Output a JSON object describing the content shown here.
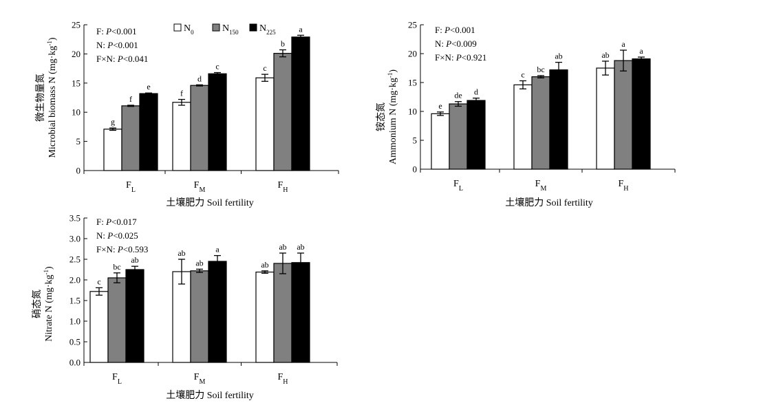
{
  "legend": [
    {
      "label": "N",
      "sub": "0",
      "color": "#ffffff"
    },
    {
      "label": "N",
      "sub": "150",
      "color": "#808080"
    },
    {
      "label": "N",
      "sub": "225",
      "color": "#000000"
    }
  ],
  "chart_data": [
    {
      "type": "bar",
      "ylabel_cn": "微生物量氮",
      "ylabel_en": "Microbial biomass N (mg·kg",
      "ylabel_sup": "-1",
      "ylabel_tail": ")",
      "xlabel": "土壤肥力 Soil fertility",
      "categories": [
        {
          "main": "F",
          "sub": "L"
        },
        {
          "main": "F",
          "sub": "M"
        },
        {
          "main": "F",
          "sub": "H"
        }
      ],
      "ylim": [
        0,
        25
      ],
      "yticks": [
        "0",
        "5",
        "10",
        "15",
        "20",
        "25"
      ],
      "stats": [
        {
          "pre": "F: ",
          "p": "P",
          "post": "<0.001"
        },
        {
          "pre": "N: ",
          "p": "P",
          "post": "<0.001"
        },
        {
          "pre": "F×N: ",
          "p": "P",
          "post": "<0.041"
        }
      ],
      "series": [
        {
          "name": "N0",
          "values": [
            7.1,
            11.7,
            15.9
          ],
          "errors": [
            0.2,
            0.5,
            0.6
          ],
          "letters": [
            "g",
            "f",
            "c"
          ]
        },
        {
          "name": "N150",
          "values": [
            11.1,
            14.6,
            20.1
          ],
          "errors": [
            0.1,
            0.1,
            0.6
          ],
          "letters": [
            "f",
            "d",
            "b"
          ]
        },
        {
          "name": "N225",
          "values": [
            13.2,
            16.6,
            22.9
          ],
          "errors": [
            0.1,
            0.2,
            0.3
          ],
          "letters": [
            "e",
            "c",
            "a"
          ]
        }
      ]
    },
    {
      "type": "bar",
      "ylabel_cn": "铵态氮",
      "ylabel_en": "Ammonium N (mg·kg",
      "ylabel_sup": "-1",
      "ylabel_tail": ")",
      "xlabel": "土壤肥力 Soil fertility",
      "categories": [
        {
          "main": "F",
          "sub": "L"
        },
        {
          "main": "F",
          "sub": "M"
        },
        {
          "main": "F",
          "sub": "H"
        }
      ],
      "ylim": [
        0,
        25
      ],
      "yticks": [
        "0",
        "5",
        "10",
        "15",
        "20",
        "25"
      ],
      "stats": [
        {
          "pre": "F: ",
          "p": "P",
          "post": "<0.001"
        },
        {
          "pre": "N: ",
          "p": "P",
          "post": "<0.009"
        },
        {
          "pre": "F×N: ",
          "p": "P",
          "post": "<0.921"
        }
      ],
      "series": [
        {
          "name": "N0",
          "values": [
            9.6,
            14.6,
            17.5
          ],
          "errors": [
            0.3,
            0.7,
            1.2
          ],
          "letters": [
            "e",
            "c",
            "ab"
          ]
        },
        {
          "name": "N150",
          "values": [
            11.3,
            16.0,
            18.8
          ],
          "errors": [
            0.4,
            0.2,
            1.8
          ],
          "letters": [
            "de",
            "bc",
            "a"
          ]
        },
        {
          "name": "N225",
          "values": [
            11.9,
            17.2,
            19.1
          ],
          "errors": [
            0.4,
            1.3,
            0.3
          ],
          "letters": [
            "d",
            "ab",
            "a"
          ]
        }
      ]
    },
    {
      "type": "bar",
      "ylabel_cn": "硝态氮",
      "ylabel_en": "Nitrate N (mg·kg",
      "ylabel_sup": "-1",
      "ylabel_tail": ")",
      "xlabel": "土壤肥力 Soil fertility",
      "categories": [
        {
          "main": "F",
          "sub": "L"
        },
        {
          "main": "F",
          "sub": "M"
        },
        {
          "main": "F",
          "sub": "H"
        }
      ],
      "ylim": [
        0,
        3.5
      ],
      "yticks": [
        "0.0",
        "0.5",
        "1.0",
        "1.5",
        "2.0",
        "2.5",
        "3.0",
        "3.5"
      ],
      "stats": [
        {
          "pre": "F: ",
          "p": "P",
          "post": "<0.017"
        },
        {
          "pre": "N: ",
          "p": "P",
          "post": "<0.025"
        },
        {
          "pre": "F×N: ",
          "p": "P",
          "post": "<0.593"
        }
      ],
      "series": [
        {
          "name": "N0",
          "values": [
            1.72,
            2.2,
            2.19
          ],
          "errors": [
            0.09,
            0.3,
            0.03
          ],
          "letters": [
            "c",
            "ab",
            "ab"
          ]
        },
        {
          "name": "N150",
          "values": [
            2.05,
            2.22,
            2.4
          ],
          "errors": [
            0.12,
            0.04,
            0.25
          ],
          "letters": [
            "bc",
            "ab",
            "ab"
          ]
        },
        {
          "name": "N225",
          "values": [
            2.25,
            2.45,
            2.42
          ],
          "errors": [
            0.08,
            0.14,
            0.23
          ],
          "letters": [
            "ab",
            "a",
            "ab"
          ]
        }
      ]
    }
  ]
}
